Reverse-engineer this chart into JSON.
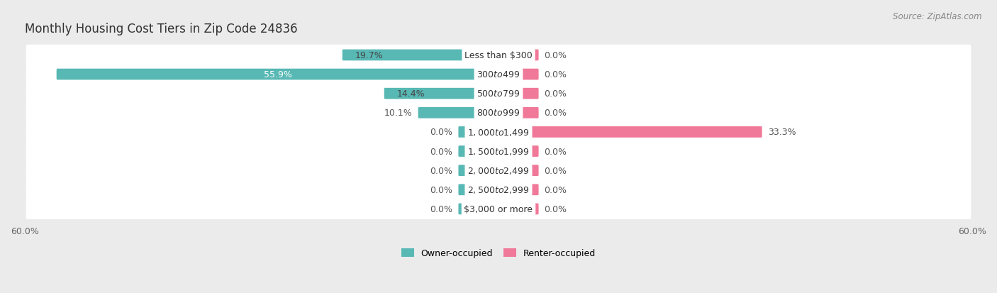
{
  "title": "Monthly Housing Cost Tiers in Zip Code 24836",
  "source": "Source: ZipAtlas.com",
  "categories": [
    "Less than $300",
    "$300 to $499",
    "$500 to $799",
    "$800 to $999",
    "$1,000 to $1,499",
    "$1,500 to $1,999",
    "$2,000 to $2,499",
    "$2,500 to $2,999",
    "$3,000 or more"
  ],
  "owner_values": [
    19.7,
    55.9,
    14.4,
    10.1,
    0.0,
    0.0,
    0.0,
    0.0,
    0.0
  ],
  "renter_values": [
    0.0,
    0.0,
    0.0,
    0.0,
    33.3,
    0.0,
    0.0,
    0.0,
    0.0
  ],
  "owner_color": "#58b8b4",
  "renter_color": "#f07898",
  "owner_label": "Owner-occupied",
  "renter_label": "Renter-occupied",
  "bg_color": "#ebebeb",
  "row_bg_color": "#ffffff",
  "axis_limit": 60.0,
  "stub_size": 5.0,
  "title_fontsize": 12,
  "source_fontsize": 8.5,
  "bar_label_fontsize": 9,
  "axis_label_fontsize": 9,
  "legend_fontsize": 9,
  "category_fontsize": 9
}
